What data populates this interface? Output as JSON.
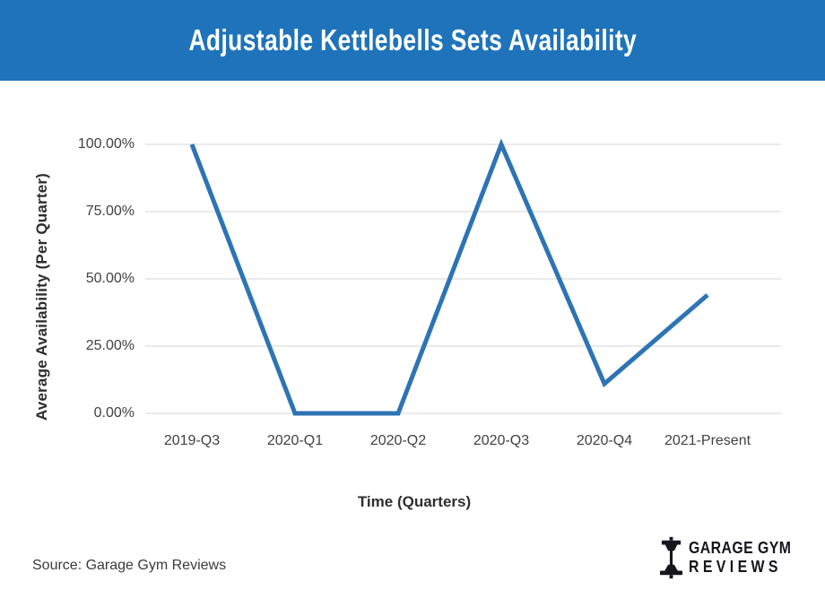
{
  "header": {
    "title": "Adjustable Kettlebells Sets Availability",
    "bg_color": "#1e73bb",
    "text_color": "#ffffff"
  },
  "chart_data": {
    "type": "line",
    "title": "Adjustable Kettlebells Sets Availability",
    "categories": [
      "2019-Q3",
      "2020-Q1",
      "2020-Q2",
      "2020-Q3",
      "2020-Q4",
      "2021-Present"
    ],
    "values": [
      100,
      0,
      0,
      100,
      11,
      44
    ],
    "unit": "%",
    "xlabel": "Time (Quarters)",
    "ylabel": "Average Availability (Per Quarter)",
    "ylim": [
      0,
      100
    ],
    "yticks": [
      0,
      25,
      50,
      75,
      100
    ],
    "ytick_labels": [
      "0.00%",
      "25.00%",
      "50.00%",
      "75.00%",
      "100.00%"
    ],
    "grid": true,
    "legend": false,
    "line_color": "#2d74b5",
    "grid_color": "#e3e3e3"
  },
  "footer": {
    "source": "Source: Garage Gym Reviews",
    "logo": {
      "line1": "GARAGE GYM",
      "line2": "REVIEWS",
      "icon": "dumbbell-icon",
      "color": "#16161d"
    }
  }
}
